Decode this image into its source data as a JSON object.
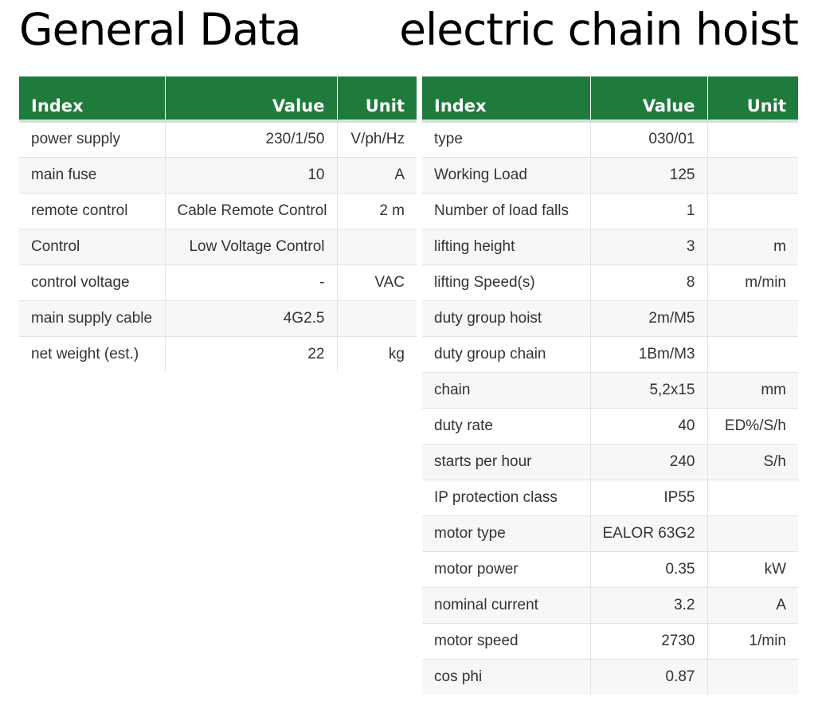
{
  "titles": {
    "left": "General Data",
    "right": "electric chain hoist"
  },
  "colors": {
    "header_bg": "#1e7b3c",
    "header_text": "#ffffff",
    "row_alt": "#f7f7f7"
  },
  "general_table": {
    "headers": {
      "index": "Index",
      "value": "Value",
      "unit": "Unit"
    },
    "rows": [
      {
        "index": "power supply",
        "value": "230/1/50",
        "unit": "V/ph/Hz"
      },
      {
        "index": "main fuse",
        "value": "10",
        "unit": "A"
      },
      {
        "index": "remote control",
        "value": "Cable Remote Control",
        "unit": "2 m"
      },
      {
        "index": "Control",
        "value": "Low Voltage Control",
        "unit": ""
      },
      {
        "index": "control voltage",
        "value": "-",
        "unit": "VAC"
      },
      {
        "index": "main supply cable",
        "value": "4G2.5",
        "unit": ""
      },
      {
        "index": "net weight (est.)",
        "value": "22",
        "unit": "kg"
      }
    ]
  },
  "hoist_table": {
    "headers": {
      "index": "Index",
      "value": "Value",
      "unit": "Unit"
    },
    "rows": [
      {
        "index": "type",
        "value": "030/01",
        "unit": ""
      },
      {
        "index": "Working Load",
        "value": "125",
        "unit": ""
      },
      {
        "index": "Number of load falls",
        "value": "1",
        "unit": ""
      },
      {
        "index": "lifting height",
        "value": "3",
        "unit": "m"
      },
      {
        "index": "lifting Speed(s)",
        "value": "8",
        "unit": "m/min"
      },
      {
        "index": "duty group hoist",
        "value": "2m/M5",
        "unit": ""
      },
      {
        "index": "duty group chain",
        "value": "1Bm/M3",
        "unit": ""
      },
      {
        "index": "chain",
        "value": "5,2x15",
        "unit": "mm"
      },
      {
        "index": "duty rate",
        "value": "40",
        "unit": "ED%/S/h"
      },
      {
        "index": "starts per hour",
        "value": "240",
        "unit": "S/h"
      },
      {
        "index": "IP protection class",
        "value": "IP55",
        "unit": ""
      },
      {
        "index": "motor type",
        "value": "EALOR 63G2",
        "unit": ""
      },
      {
        "index": "motor power",
        "value": "0.35",
        "unit": "kW"
      },
      {
        "index": "nominal current",
        "value": "3.2",
        "unit": "A"
      },
      {
        "index": "motor speed",
        "value": "2730",
        "unit": "1/min"
      },
      {
        "index": "cos phi",
        "value": "0.87",
        "unit": ""
      }
    ]
  }
}
